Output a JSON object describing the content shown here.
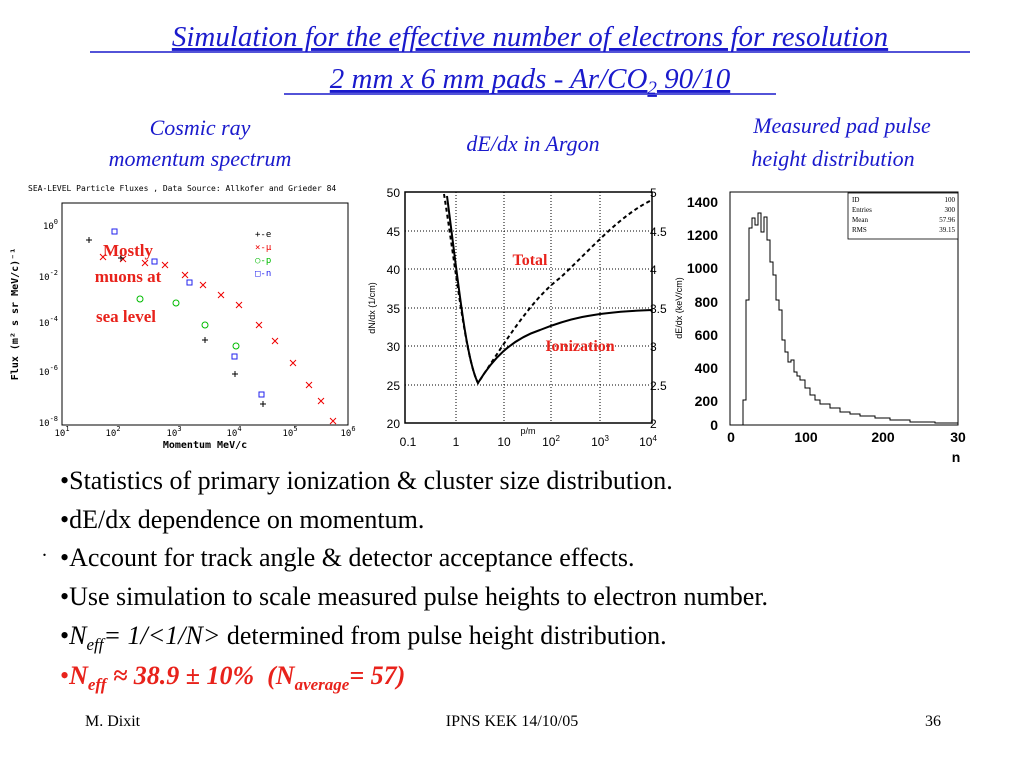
{
  "slide": {
    "title": {
      "line1": "Simulation for the effective number of electrons for resolution",
      "line2": "2 mm x 6 mm pads - Ar/CO",
      "line2_sub": "2",
      "line2_tail": " 90/10"
    },
    "captions": {
      "left": [
        "Cosmic ray",
        "momentum spectrum"
      ],
      "middle": "dE/dx in Argon",
      "right": [
        "Measured pad pulse",
        "height distribution"
      ]
    },
    "figure1": {
      "header": "SEA-LEVEL Particle Fluxes , Data Source: Allkofer and Grieder 84",
      "yticks": [
        {
          "base": "10",
          "exp": "0"
        },
        {
          "base": "10",
          "exp": "-2"
        },
        {
          "base": "10",
          "exp": "-4"
        },
        {
          "base": "10",
          "exp": "-6"
        },
        {
          "base": "10",
          "exp": "-8"
        }
      ],
      "xticks": [
        {
          "base": "10",
          "exp": "1"
        },
        {
          "base": "10",
          "exp": "2"
        },
        {
          "base": "10",
          "exp": "3"
        },
        {
          "base": "10",
          "exp": "4"
        },
        {
          "base": "10",
          "exp": "5"
        },
        {
          "base": "10",
          "exp": "6"
        }
      ],
      "ylabel": "Flux (m² s sr MeV/c)⁻¹",
      "xlabel": "Momentum MeV/c",
      "legend": [
        "+-e",
        "×-μ",
        "○-p",
        "□-n"
      ],
      "annotation": [
        "Mostly",
        "muons at",
        "sea level"
      ]
    },
    "figure2": {
      "yticks_left": [
        "50",
        "45",
        "40",
        "35",
        "30",
        "25",
        "20"
      ],
      "yticks_right": [
        "5",
        "4.5",
        "4",
        "3.5",
        "3",
        "2.5",
        "2"
      ],
      "xticks": [
        {
          "base": "0.1"
        },
        {
          "base": "1"
        },
        {
          "base": "10"
        },
        {
          "base": "10",
          "exp": "2"
        },
        {
          "base": "10",
          "exp": "3"
        },
        {
          "base": "10",
          "exp": "4"
        }
      ],
      "ylabel_left": "dN/dx (1/cm)",
      "ylabel_right": "dE/dx (keV/cm)",
      "xlabel": "p/m",
      "annotations": [
        "Total",
        "Ionization"
      ]
    },
    "figure3": {
      "yticks": [
        "1400",
        "1200",
        "1000",
        "800",
        "600",
        "400",
        "200",
        "0"
      ],
      "xticks": [
        "0",
        "100",
        "200",
        "30"
      ],
      "xlabel": "n",
      "stats": [
        [
          "ID",
          "100"
        ],
        [
          "Entries",
          "300"
        ],
        [
          "Mean",
          "57.96"
        ],
        [
          "RMS",
          "39.15"
        ]
      ]
    },
    "bullets": [
      {
        "text": "•Statistics of primary ionization & cluster size distribution."
      },
      {
        "text": "•dE/dx dependence on momentum."
      },
      {
        "text": "•Account for track angle & detector acceptance effects."
      },
      {
        "text": "•Use simulation to scale measured pulse heights to electron number."
      },
      {
        "parts": [
          "•",
          "N",
          "eff",
          "= 1/<1/N>",
          " determined from pulse height distribution."
        ]
      },
      {
        "parts": [
          "•",
          "N",
          "eff",
          " ≈ 38.9 ± 10%  (N",
          "average",
          "= 57)"
        ]
      }
    ],
    "stray": ".",
    "footer": {
      "left": "M. Dixit",
      "center": "IPNS KEK 14/10/05",
      "right": "36"
    }
  }
}
